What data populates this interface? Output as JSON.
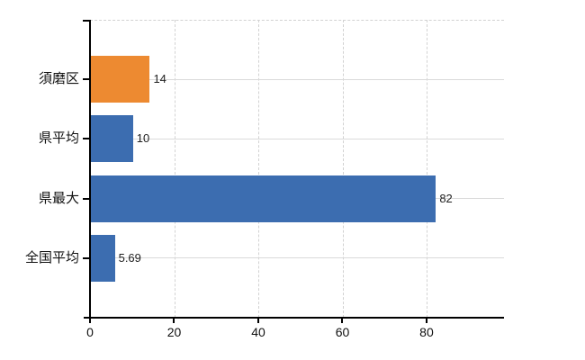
{
  "chart_data": {
    "type": "bar",
    "orientation": "horizontal",
    "title": "",
    "xlabel": "",
    "ylabel": "",
    "categories": [
      "須磨区",
      "県平均",
      "県最大",
      "全国平均"
    ],
    "values": [
      14,
      10,
      82,
      5.69
    ],
    "value_labels": [
      "14",
      "10",
      "82",
      "5.69"
    ],
    "bar_colors": [
      "#ed8a31",
      "#3c6db0",
      "#3c6db0",
      "#3c6db0"
    ],
    "x_ticks": [
      0,
      20,
      40,
      60,
      80
    ],
    "x_tick_labels": [
      "0",
      "20",
      "40",
      "60",
      "80"
    ],
    "xlim": [
      0,
      98.4
    ],
    "grid": true,
    "legend_visible": false,
    "colors": {
      "highlight_bar": "#ed8a31",
      "default_bar": "#3c6db0",
      "axis": "#000000",
      "gridline": "#d2d2d2",
      "text": "#111111"
    }
  }
}
